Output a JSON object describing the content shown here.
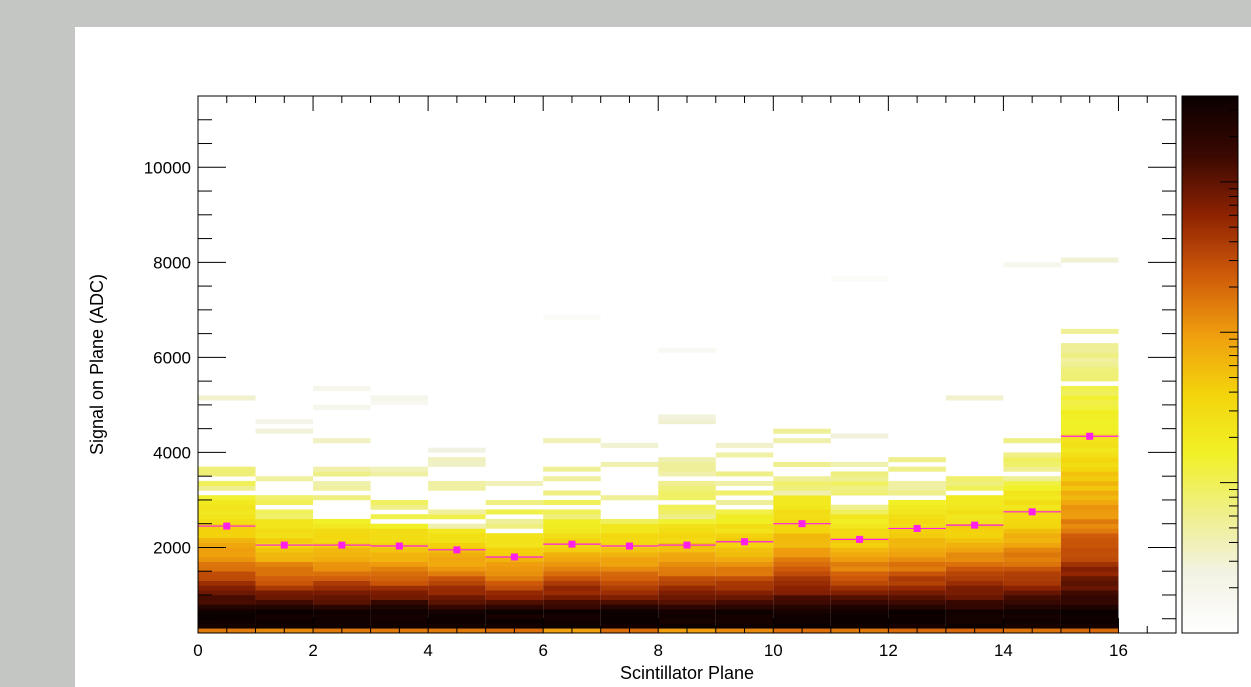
{
  "chart_data": {
    "type": "heatmap",
    "title": "",
    "xlabel": "Scintillator Plane",
    "ylabel": "Signal on Plane (ADC)",
    "xlim": [
      0,
      17
    ],
    "ylim": [
      200,
      11500
    ],
    "x_ticks": [
      0,
      2,
      4,
      6,
      8,
      10,
      12,
      14,
      16
    ],
    "y_ticks": [
      2000,
      4000,
      6000,
      8000,
      10000
    ],
    "grid": false,
    "colorbar": "right, no tick labels",
    "colormap": [
      "#ffffff",
      "#f2f2e4",
      "#efef8c",
      "#f1f127",
      "#f3d40c",
      "#ef9e0e",
      "#cf5a0a",
      "#8e2302",
      "#3a0801",
      "#0a0000"
    ],
    "marker_color": "#ff1fe8",
    "profile": {
      "x": [
        0.5,
        1.5,
        2.5,
        3.5,
        4.5,
        5.5,
        6.5,
        7.5,
        8.5,
        9.5,
        10.5,
        11.5,
        12.5,
        13.5,
        14.5,
        15.5
      ],
      "y": [
        2450,
        2050,
        2050,
        2030,
        1950,
        1800,
        2070,
        2030,
        2050,
        2120,
        2500,
        2170,
        2400,
        2470,
        2750,
        4340
      ]
    }
  }
}
